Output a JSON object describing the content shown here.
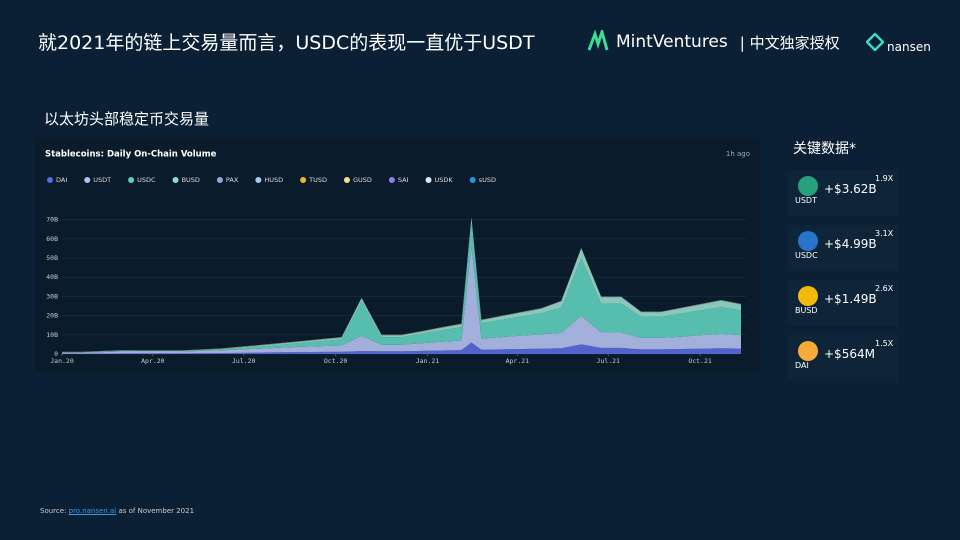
{
  "header": {
    "title": "就2021年的链上交易量而言，USDC的表现一直优于USDT",
    "brand": "MintVentures",
    "license": "| 中文独家授权",
    "partner": "nansen"
  },
  "section_label": "以太坊头部稳定币交易量",
  "chart_data": {
    "type": "area",
    "stacked": true,
    "title": "Stablecoins: Daily On-Chain Volume",
    "updated": "1h ago",
    "x": [
      0,
      20,
      40,
      60,
      80,
      100,
      120,
      140,
      160,
      180,
      200,
      220,
      240,
      260,
      280,
      300,
      320,
      340,
      360,
      380,
      400,
      410,
      420,
      440,
      460,
      480,
      500,
      520,
      540,
      560,
      580,
      600,
      620,
      640,
      660,
      680
    ],
    "xlim": [
      0,
      685
    ],
    "xticks": [
      {
        "value": 0,
        "label": "Jan.20"
      },
      {
        "value": 91,
        "label": "Apr.20"
      },
      {
        "value": 182,
        "label": "Jul.20"
      },
      {
        "value": 274,
        "label": "Oct.20"
      },
      {
        "value": 366,
        "label": "Jan.21"
      },
      {
        "value": 456,
        "label": "Apr.21"
      },
      {
        "value": 547,
        "label": "Jul.21"
      },
      {
        "value": 639,
        "label": "Oct.21"
      }
    ],
    "ylim": [
      0,
      75
    ],
    "yticks": [
      0,
      {
        "value": 10,
        "label": "10B"
      },
      {
        "value": 20,
        "label": "20B"
      },
      {
        "value": 30,
        "label": "30B"
      },
      {
        "value": 40,
        "label": "40B"
      },
      {
        "value": 50,
        "label": "50B"
      },
      {
        "value": 60,
        "label": "60B"
      },
      {
        "value": 70,
        "label": "70B"
      }
    ],
    "grid": true,
    "series": [
      {
        "name": "DAI",
        "color": "#5a6be0",
        "values": [
          0.1,
          0.1,
          0.2,
          0.3,
          0.3,
          0.3,
          0.3,
          0.4,
          0.5,
          0.6,
          0.8,
          0.9,
          1,
          1.1,
          1.2,
          1.5,
          1.4,
          1.4,
          1.6,
          1.8,
          2,
          6,
          2.2,
          2.4,
          2.6,
          2.8,
          3,
          5,
          3.2,
          3.2,
          2.4,
          2.4,
          2.6,
          2.8,
          3,
          2.8
        ]
      },
      {
        "name": "USDT",
        "color": "#b4c0ee",
        "values": [
          0.6,
          0.6,
          0.8,
          1,
          1,
          1,
          1,
          1.2,
          1.4,
          1.8,
          2,
          2.4,
          2.8,
          3,
          3.2,
          8,
          3.4,
          3.4,
          4,
          4.6,
          5,
          50,
          5.8,
          6.4,
          7,
          7.4,
          8,
          15,
          8,
          8,
          6,
          6,
          6.4,
          7,
          7.4,
          7
        ]
      },
      {
        "name": "USDC",
        "color": "#5fcfbd",
        "values": [
          0.2,
          0.2,
          0.3,
          0.4,
          0.4,
          0.4,
          0.4,
          0.5,
          0.6,
          0.9,
          1.2,
          1.6,
          2,
          2.6,
          3.2,
          18,
          4,
          4,
          5,
          6,
          7,
          12,
          8,
          9,
          10,
          11,
          13,
          30,
          15,
          15,
          11,
          11,
          12,
          13,
          14,
          13
        ]
      },
      {
        "name": "BUSD",
        "color": "#96dccb",
        "values": [
          0,
          0,
          0,
          0,
          0,
          0,
          0,
          0.1,
          0.2,
          0.3,
          0.5,
          0.6,
          0.7,
          0.8,
          0.9,
          1.5,
          0.9,
          0.9,
          1,
          1.2,
          1.5,
          3,
          1.6,
          1.8,
          2,
          2.4,
          3.4,
          5,
          3.4,
          3.4,
          2.4,
          2.4,
          2.8,
          3,
          3.4,
          3
        ]
      },
      {
        "name": "PAX",
        "color": "#9aa6d8",
        "values": [
          0.1,
          0.1,
          0.1,
          0.1,
          0.1,
          0.1,
          0.1,
          0.1,
          0.1,
          0.1,
          0.1,
          0.1,
          0.1,
          0.1,
          0.1,
          0.1,
          0.1,
          0.1,
          0.1,
          0.1,
          0.1,
          0.1,
          0.1,
          0.1,
          0.1,
          0.1,
          0.1,
          0.1,
          0.1,
          0.1,
          0.1,
          0.1,
          0.1,
          0.1,
          0.1,
          0.1
        ]
      },
      {
        "name": "HUSD",
        "color": "#a9c9f2",
        "values": [
          0,
          0,
          0,
          0,
          0,
          0,
          0,
          0,
          0,
          0.1,
          0.1,
          0.1,
          0.1,
          0.1,
          0.1,
          0.1,
          0.1,
          0.1,
          0.1,
          0.1,
          0.1,
          0.1,
          0.1,
          0.1,
          0.1,
          0.1,
          0.1,
          0.1,
          0.1,
          0.1,
          0.1,
          0.1,
          0.1,
          0.1,
          0.1,
          0.1
        ]
      },
      {
        "name": "TUSD",
        "color": "#f0b429",
        "values": [
          0.1,
          0.1,
          0.1,
          0.1,
          0.1,
          0.1,
          0.1,
          0.1,
          0.1,
          0.1,
          0.1,
          0.1,
          0.1,
          0.1,
          0.1,
          0.1,
          0.1,
          0.1,
          0.1,
          0.1,
          0.1,
          0.1,
          0.1,
          0.1,
          0.1,
          0.1,
          0.1,
          0.1,
          0.1,
          0.1,
          0.1,
          0.1,
          0.1,
          0.1,
          0.1,
          0.1
        ]
      },
      {
        "name": "GUSD",
        "color": "#f3e08c",
        "values": [
          0,
          0,
          0,
          0,
          0,
          0,
          0,
          0,
          0,
          0,
          0,
          0,
          0,
          0,
          0,
          0,
          0,
          0,
          0,
          0,
          0,
          0,
          0,
          0,
          0,
          0,
          0,
          0,
          0,
          0,
          0,
          0,
          0,
          0,
          0,
          0
        ]
      },
      {
        "name": "SAI",
        "color": "#8e7ef0",
        "values": [
          0.1,
          0.1,
          0.1,
          0.1,
          0,
          0,
          0,
          0,
          0,
          0,
          0,
          0,
          0,
          0,
          0,
          0,
          0,
          0,
          0,
          0,
          0,
          0,
          0,
          0,
          0,
          0,
          0,
          0,
          0,
          0,
          0,
          0,
          0,
          0,
          0,
          0
        ]
      },
      {
        "name": "USDK",
        "color": "#dfe3f6",
        "values": [
          0,
          0,
          0,
          0,
          0,
          0,
          0,
          0,
          0,
          0,
          0,
          0,
          0,
          0,
          0,
          0,
          0,
          0,
          0,
          0,
          0,
          0,
          0,
          0,
          0,
          0,
          0,
          0,
          0,
          0,
          0,
          0,
          0,
          0,
          0,
          0
        ]
      },
      {
        "name": "sUSD",
        "color": "#1b9be0",
        "values": [
          0,
          0,
          0,
          0,
          0,
          0,
          0,
          0,
          0,
          0,
          0,
          0,
          0,
          0,
          0,
          0,
          0,
          0,
          0,
          0,
          0,
          0,
          0,
          0,
          0,
          0,
          0,
          0,
          0,
          0,
          0,
          0,
          0,
          0,
          0,
          0
        ]
      }
    ]
  },
  "key_stats": {
    "title": "关键数据*",
    "items": [
      {
        "token": "USDT",
        "change": "+$3.62B",
        "multiple": "1.9X",
        "color": "#26a17b"
      },
      {
        "token": "USDC",
        "change": "+$4.99B",
        "multiple": "3.1X",
        "color": "#2775ca"
      },
      {
        "token": "BUSD",
        "change": "+$1.49B",
        "multiple": "2.6X",
        "color": "#f0b90b"
      },
      {
        "token": "DAI",
        "change": "+$564M",
        "multiple": "1.5X",
        "color": "#f5ac37"
      }
    ]
  },
  "source": {
    "prefix": "Source:",
    "link": "pro.nansen.ai",
    "suffix": "as of November 2021"
  }
}
